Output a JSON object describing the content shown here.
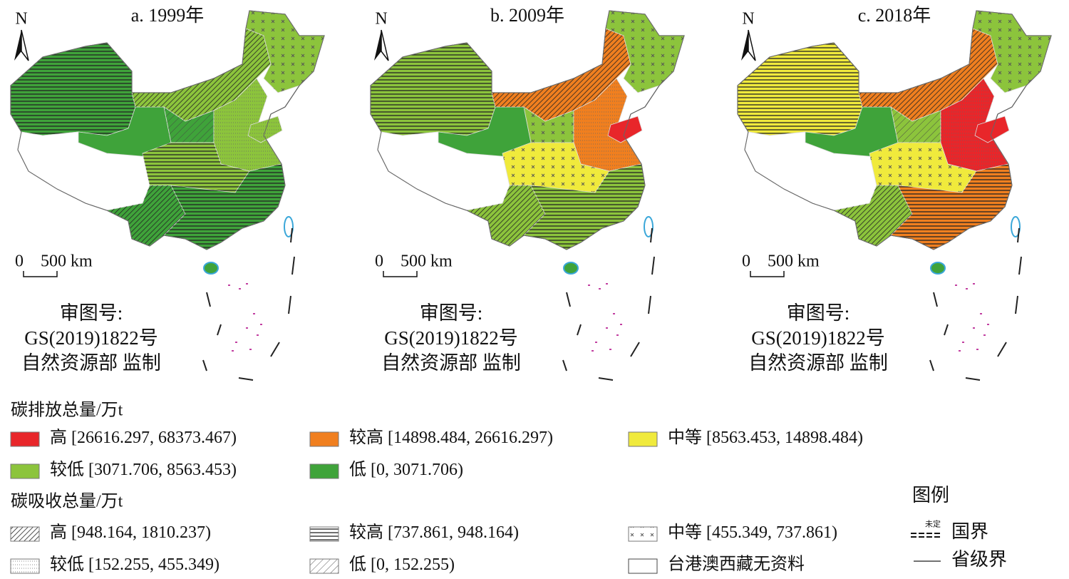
{
  "panels": [
    {
      "title": "a. 1999年",
      "north": "N",
      "scale": {
        "zero": "0",
        "distance": "500 km"
      },
      "approval": [
        "审图号:",
        "GS(2019)1822号",
        "自然资源部 监制"
      ]
    },
    {
      "title": "b. 2009年",
      "north": "N",
      "scale": {
        "zero": "0",
        "distance": "500 km"
      },
      "approval": [
        "审图号:",
        "GS(2019)1822号",
        "自然资源部 监制"
      ]
    },
    {
      "title": "c. 2018年",
      "north": "N",
      "scale": {
        "zero": "0",
        "distance": "500 km"
      },
      "approval": [
        "审图号:",
        "GS(2019)1822号",
        "自然资源部 监制"
      ]
    }
  ],
  "legend": {
    "emission": {
      "title": "碳排放总量/万t",
      "items": [
        {
          "label": "高",
          "range": "[26616.297, 68373.467)"
        },
        {
          "label": "较高",
          "range": "[14898.484, 26616.297)"
        },
        {
          "label": "中等",
          "range": "[8563.453, 14898.484)"
        },
        {
          "label": "较低",
          "range": "[3071.706, 8563.453)"
        },
        {
          "label": "低",
          "range": "[0, 3071.706)"
        }
      ]
    },
    "absorption": {
      "title": "碳吸收总量/万t",
      "items": [
        {
          "label": "高",
          "range": "[948.164, 1810.237)"
        },
        {
          "label": "较高",
          "range": "[737.861, 948.164)"
        },
        {
          "label": "中等",
          "range": "[455.349, 737.861)"
        },
        {
          "label": "较低",
          "range": "[152.255, 455.349)"
        },
        {
          "label": "低",
          "range": "[0, 152.255)"
        }
      ],
      "no_data": "台港澳西藏无资料"
    },
    "boundaries": {
      "title": "图例",
      "undetermined": "未定",
      "national": "国界",
      "provincial": "省级界"
    }
  }
}
